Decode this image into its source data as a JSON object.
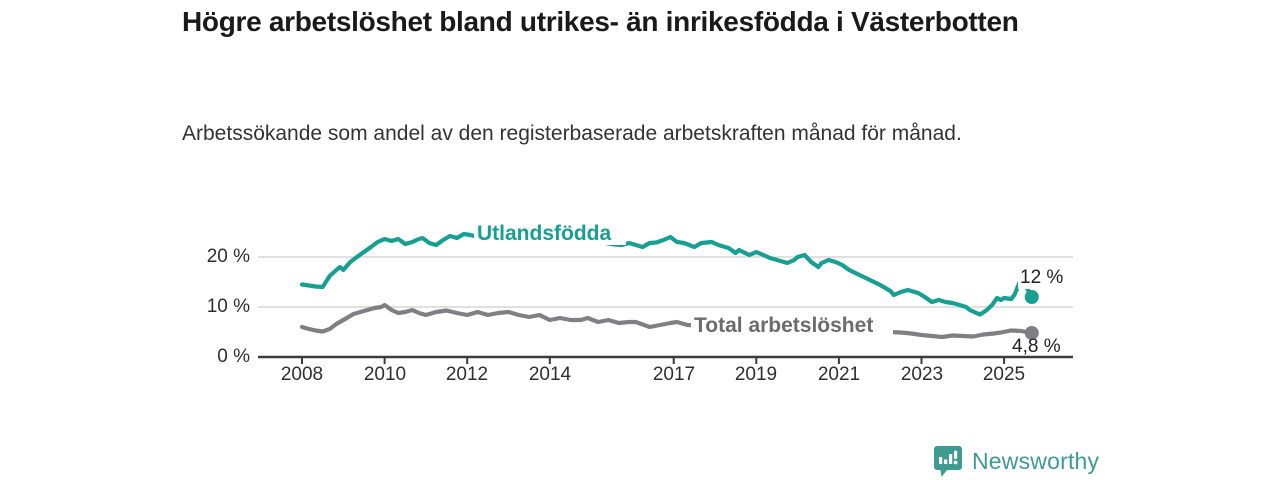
{
  "header": {
    "title": "Högre arbetslöshet bland utrikes- än inrikesfödda i Västerbotten",
    "subtitle": "Arbetssökande som andel av den registerbaserade arbetskraften månad för månad."
  },
  "colors": {
    "series_foreign_born": "#17a092",
    "series_total": "#808084",
    "axis": "#3b3b3b",
    "gridline": "#d6d6d6",
    "brand": "#3f9b91"
  },
  "footer": {
    "brand": "Newsworthy",
    "brand_icon": "bar-chart-speech-bubble-icon"
  },
  "chart_data": {
    "type": "line",
    "title": "Högre arbetslöshet bland utrikes- än inrikesfödda i Västerbotten",
    "subtitle": "Arbetssökande som andel av den registerbaserade arbetskraften månad för månad.",
    "xlabel": "",
    "ylabel": "",
    "grid": "horizontal",
    "legend_position": "inline-labels",
    "xlim": [
      2007.85,
      2026.6
    ],
    "ylim": [
      0,
      27
    ],
    "x_ticks": [
      2008,
      2010,
      2012,
      2014,
      2017,
      2019,
      2021,
      2023,
      2025
    ],
    "x_tick_labels": [
      "2008",
      "2010",
      "2012",
      "2014",
      "2017",
      "2019",
      "2021",
      "2023",
      "2025"
    ],
    "y_ticks": [
      0,
      10,
      20
    ],
    "y_tick_labels": [
      "0 %",
      "10 %",
      "20 %"
    ],
    "series": [
      {
        "name": "Utlandsfödda",
        "color": "#17a092",
        "end_label": "12 %",
        "end_value": 12,
        "points": [
          [
            2008.0,
            14.5
          ],
          [
            2008.17,
            14.3
          ],
          [
            2008.33,
            14.1
          ],
          [
            2008.5,
            14.0
          ],
          [
            2008.67,
            16.2
          ],
          [
            2008.83,
            17.4
          ],
          [
            2008.92,
            18.0
          ],
          [
            2009.0,
            17.4
          ],
          [
            2009.17,
            19.0
          ],
          [
            2009.33,
            20.0
          ],
          [
            2009.5,
            21.0
          ],
          [
            2009.67,
            22.0
          ],
          [
            2009.83,
            23.0
          ],
          [
            2010.0,
            23.6
          ],
          [
            2010.17,
            23.2
          ],
          [
            2010.33,
            23.6
          ],
          [
            2010.5,
            22.6
          ],
          [
            2010.67,
            23.0
          ],
          [
            2010.83,
            23.6
          ],
          [
            2010.92,
            23.8
          ],
          [
            2011.08,
            22.8
          ],
          [
            2011.25,
            22.4
          ],
          [
            2011.42,
            23.4
          ],
          [
            2011.58,
            24.2
          ],
          [
            2011.75,
            23.8
          ],
          [
            2011.92,
            24.6
          ],
          [
            2012.08,
            24.4
          ],
          [
            2012.25,
            24.0
          ],
          [
            2012.42,
            24.4
          ],
          [
            2012.58,
            23.8
          ],
          [
            2012.75,
            23.4
          ],
          [
            2012.92,
            23.8
          ],
          [
            2013.08,
            24.2
          ],
          [
            2013.25,
            23.8
          ],
          [
            2013.42,
            23.2
          ],
          [
            2013.58,
            23.6
          ],
          [
            2013.75,
            23.2
          ],
          [
            2013.92,
            23.6
          ],
          [
            2014.08,
            23.9
          ],
          [
            2014.25,
            23.4
          ],
          [
            2014.42,
            22.9
          ],
          [
            2014.58,
            23.2
          ],
          [
            2014.75,
            23.5
          ],
          [
            2014.92,
            23.1
          ],
          [
            2015.08,
            23.5
          ],
          [
            2015.25,
            23.0
          ],
          [
            2015.42,
            22.7
          ],
          [
            2015.58,
            22.5
          ],
          [
            2015.75,
            22.4
          ],
          [
            2015.92,
            22.8
          ],
          [
            2016.08,
            22.4
          ],
          [
            2016.25,
            22.0
          ],
          [
            2016.42,
            22.8
          ],
          [
            2016.58,
            22.9
          ],
          [
            2016.75,
            23.4
          ],
          [
            2016.92,
            24.0
          ],
          [
            2017.08,
            23.0
          ],
          [
            2017.25,
            22.8
          ],
          [
            2017.5,
            22.0
          ],
          [
            2017.67,
            22.8
          ],
          [
            2017.92,
            23.0
          ],
          [
            2018.08,
            22.4
          ],
          [
            2018.33,
            21.8
          ],
          [
            2018.5,
            20.8
          ],
          [
            2018.58,
            21.4
          ],
          [
            2018.83,
            20.4
          ],
          [
            2019.0,
            21.0
          ],
          [
            2019.17,
            20.4
          ],
          [
            2019.33,
            19.8
          ],
          [
            2019.5,
            19.4
          ],
          [
            2019.75,
            18.8
          ],
          [
            2019.92,
            19.4
          ],
          [
            2020.0,
            20.0
          ],
          [
            2020.17,
            20.4
          ],
          [
            2020.33,
            19.0
          ],
          [
            2020.5,
            18.0
          ],
          [
            2020.58,
            18.8
          ],
          [
            2020.75,
            19.4
          ],
          [
            2020.92,
            19.0
          ],
          [
            2021.08,
            18.4
          ],
          [
            2021.25,
            17.4
          ],
          [
            2021.5,
            16.4
          ],
          [
            2021.75,
            15.4
          ],
          [
            2022.0,
            14.4
          ],
          [
            2022.25,
            13.2
          ],
          [
            2022.33,
            12.4
          ],
          [
            2022.5,
            13.0
          ],
          [
            2022.67,
            13.4
          ],
          [
            2022.92,
            12.8
          ],
          [
            2023.08,
            12.0
          ],
          [
            2023.25,
            11.0
          ],
          [
            2023.42,
            11.4
          ],
          [
            2023.58,
            11.0
          ],
          [
            2023.75,
            10.8
          ],
          [
            2023.92,
            10.4
          ],
          [
            2024.08,
            10.0
          ],
          [
            2024.17,
            9.4
          ],
          [
            2024.33,
            8.8
          ],
          [
            2024.42,
            8.5
          ],
          [
            2024.58,
            9.4
          ],
          [
            2024.71,
            10.4
          ],
          [
            2024.83,
            11.8
          ],
          [
            2024.92,
            11.4
          ],
          [
            2025.0,
            11.8
          ],
          [
            2025.17,
            11.6
          ],
          [
            2025.25,
            12.4
          ],
          [
            2025.42,
            15.8
          ],
          [
            2025.67,
            12.0
          ]
        ]
      },
      {
        "name": "Total arbetslöshet",
        "color": "#808084",
        "end_label": "4,8 %",
        "end_value": 4.8,
        "points": [
          [
            2008.0,
            6.0
          ],
          [
            2008.17,
            5.6
          ],
          [
            2008.33,
            5.3
          ],
          [
            2008.5,
            5.1
          ],
          [
            2008.67,
            5.6
          ],
          [
            2008.83,
            6.6
          ],
          [
            2009.0,
            7.4
          ],
          [
            2009.25,
            8.6
          ],
          [
            2009.5,
            9.2
          ],
          [
            2009.75,
            9.8
          ],
          [
            2009.92,
            10.0
          ],
          [
            2010.0,
            10.4
          ],
          [
            2010.17,
            9.4
          ],
          [
            2010.33,
            8.8
          ],
          [
            2010.5,
            9.0
          ],
          [
            2010.67,
            9.4
          ],
          [
            2010.83,
            8.8
          ],
          [
            2011.0,
            8.4
          ],
          [
            2011.25,
            9.0
          ],
          [
            2011.5,
            9.3
          ],
          [
            2011.75,
            8.8
          ],
          [
            2012.0,
            8.4
          ],
          [
            2012.25,
            9.0
          ],
          [
            2012.5,
            8.4
          ],
          [
            2012.75,
            8.8
          ],
          [
            2013.0,
            9.0
          ],
          [
            2013.25,
            8.4
          ],
          [
            2013.5,
            8.0
          ],
          [
            2013.75,
            8.4
          ],
          [
            2014.0,
            7.4
          ],
          [
            2014.25,
            7.8
          ],
          [
            2014.5,
            7.4
          ],
          [
            2014.75,
            7.4
          ],
          [
            2014.92,
            7.8
          ],
          [
            2015.17,
            7.0
          ],
          [
            2015.42,
            7.4
          ],
          [
            2015.67,
            6.8
          ],
          [
            2015.92,
            7.0
          ],
          [
            2016.08,
            7.0
          ],
          [
            2016.42,
            6.0
          ],
          [
            2016.67,
            6.4
          ],
          [
            2016.92,
            6.8
          ],
          [
            2017.08,
            7.0
          ],
          [
            2017.33,
            6.4
          ],
          [
            2017.58,
            6.3
          ],
          [
            2017.83,
            6.1
          ],
          [
            2018.08,
            6.0
          ],
          [
            2018.5,
            5.7
          ],
          [
            2018.92,
            5.5
          ],
          [
            2019.25,
            5.3
          ],
          [
            2019.58,
            5.2
          ],
          [
            2019.92,
            5.5
          ],
          [
            2020.25,
            6.2
          ],
          [
            2020.42,
            6.4
          ],
          [
            2020.67,
            6.2
          ],
          [
            2020.92,
            5.9
          ],
          [
            2021.17,
            5.6
          ],
          [
            2021.5,
            5.3
          ],
          [
            2021.83,
            5.1
          ],
          [
            2022.17,
            5.0
          ],
          [
            2022.5,
            4.9
          ],
          [
            2022.75,
            4.7
          ],
          [
            2023.0,
            4.4
          ],
          [
            2023.25,
            4.2
          ],
          [
            2023.5,
            4.0
          ],
          [
            2023.75,
            4.3
          ],
          [
            2024.0,
            4.2
          ],
          [
            2024.25,
            4.1
          ],
          [
            2024.5,
            4.5
          ],
          [
            2024.75,
            4.7
          ],
          [
            2024.92,
            4.9
          ],
          [
            2025.17,
            5.3
          ],
          [
            2025.42,
            5.2
          ],
          [
            2025.67,
            4.8
          ]
        ]
      }
    ]
  }
}
